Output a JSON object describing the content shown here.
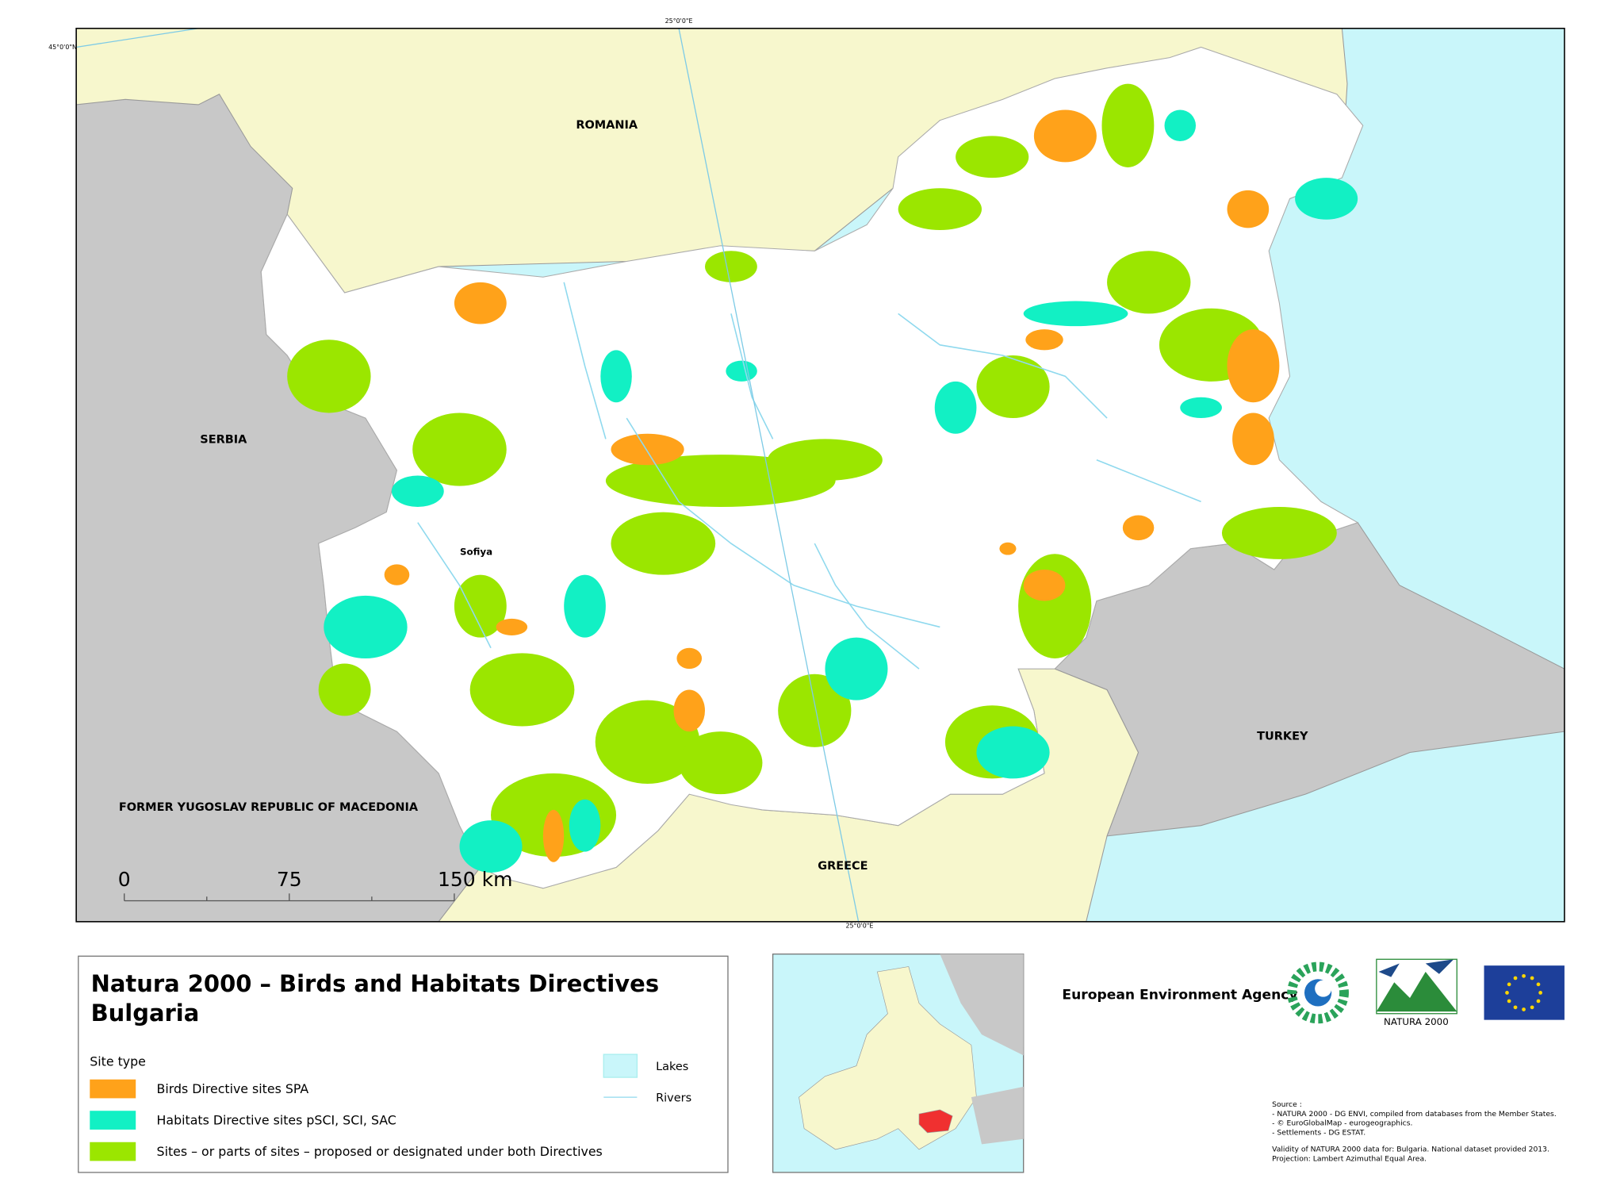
{
  "map": {
    "graticule_labels": [
      "25°0'0\"E",
      "45°0'0\"N",
      "25°0'0\"E"
    ],
    "country_labels": [
      "ROMANIA",
      "SERBIA",
      "FORMER YUGOSLAV REPUBLIC OF MACEDONIA",
      "GREECE",
      "TURKEY"
    ],
    "city_label": "Sofiya",
    "scale_bar": [
      "0",
      "75",
      "150 km"
    ]
  },
  "legend": {
    "title": [
      "Natura 2000 – Birds and Habitats Directives",
      "Bulgaria"
    ],
    "site_type_heading": "Site type",
    "site_types": [
      "Birds Directive sites SPA",
      "Habitats Directive sites pSCI, SCI, SAC",
      "Sites – or parts of sites – proposed or designated under both Directives"
    ],
    "other": [
      "Lakes",
      "Rivers"
    ]
  },
  "logos": {
    "eea": "European Environment Agency",
    "natura": "NATURA 2000"
  },
  "source": [
    "Source :",
    "- NATURA 2000 - DG ENVI, compiled from databases from the Member States.",
    "- © EuroGlobalMap - eurogeographics.",
    "- Settlements - DG ESTAT.",
    "Validity of NATURA 2000 data for: Bulgaria. National dataset provided 2013.",
    "Projection: Lambert Azimuthal Equal Area."
  ]
}
